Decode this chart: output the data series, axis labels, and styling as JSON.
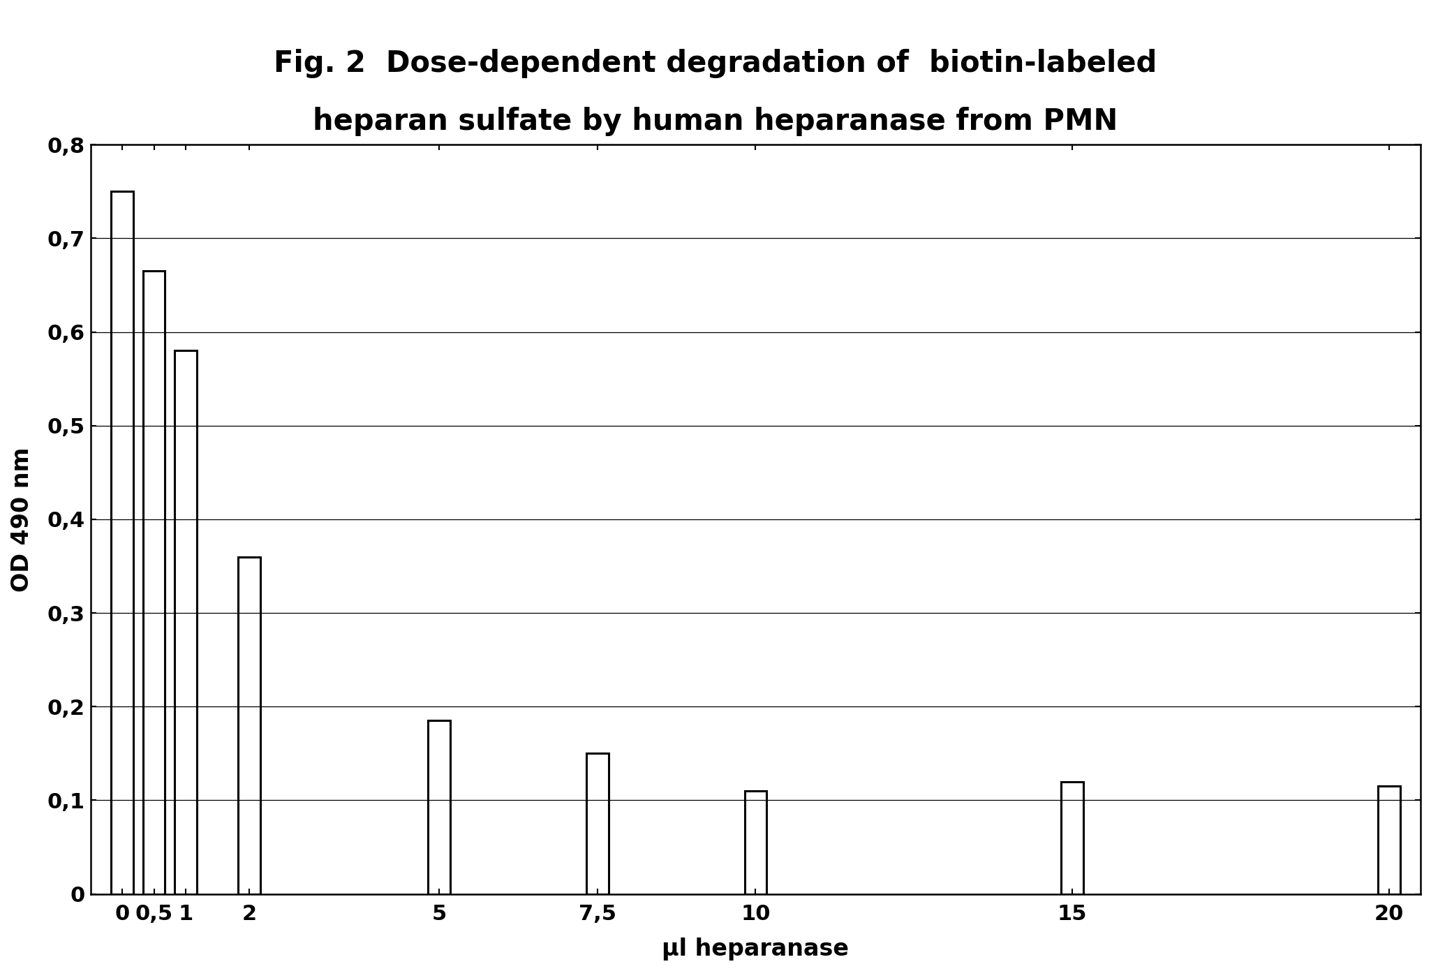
{
  "categories": [
    "0",
    "0,5",
    "1",
    "2",
    "5",
    "7,5",
    "10",
    "15",
    "20"
  ],
  "values": [
    0.75,
    0.665,
    0.58,
    0.36,
    0.185,
    0.15,
    0.11,
    0.12,
    0.115
  ],
  "bar_face_color": "#ffffff",
  "bar_edge_color": "#000000",
  "bar_linewidth": 2.2,
  "title_line1": "Fig. 2  Dose-dependent degradation of  biotin-labeled",
  "title_line2": "heparan sulfate by human heparanase from PMN",
  "xlabel": "μl heparanase",
  "ylabel": "OD 490 nm",
  "ylim": [
    0,
    0.8
  ],
  "yticks": [
    0,
    0.1,
    0.2,
    0.3,
    0.4,
    0.5,
    0.6,
    0.7,
    0.8
  ],
  "ytick_labels": [
    "0",
    "0,1",
    "0,2",
    "0,3",
    "0,4",
    "0,5",
    "0,6",
    "0,7",
    "0,8"
  ],
  "background_color": "#ffffff",
  "grid_color": "#000000",
  "title_fontsize": 30,
  "axis_label_fontsize": 24,
  "tick_fontsize": 22,
  "bar_width": 0.35,
  "xlim": [
    -0.5,
    20.5
  ]
}
